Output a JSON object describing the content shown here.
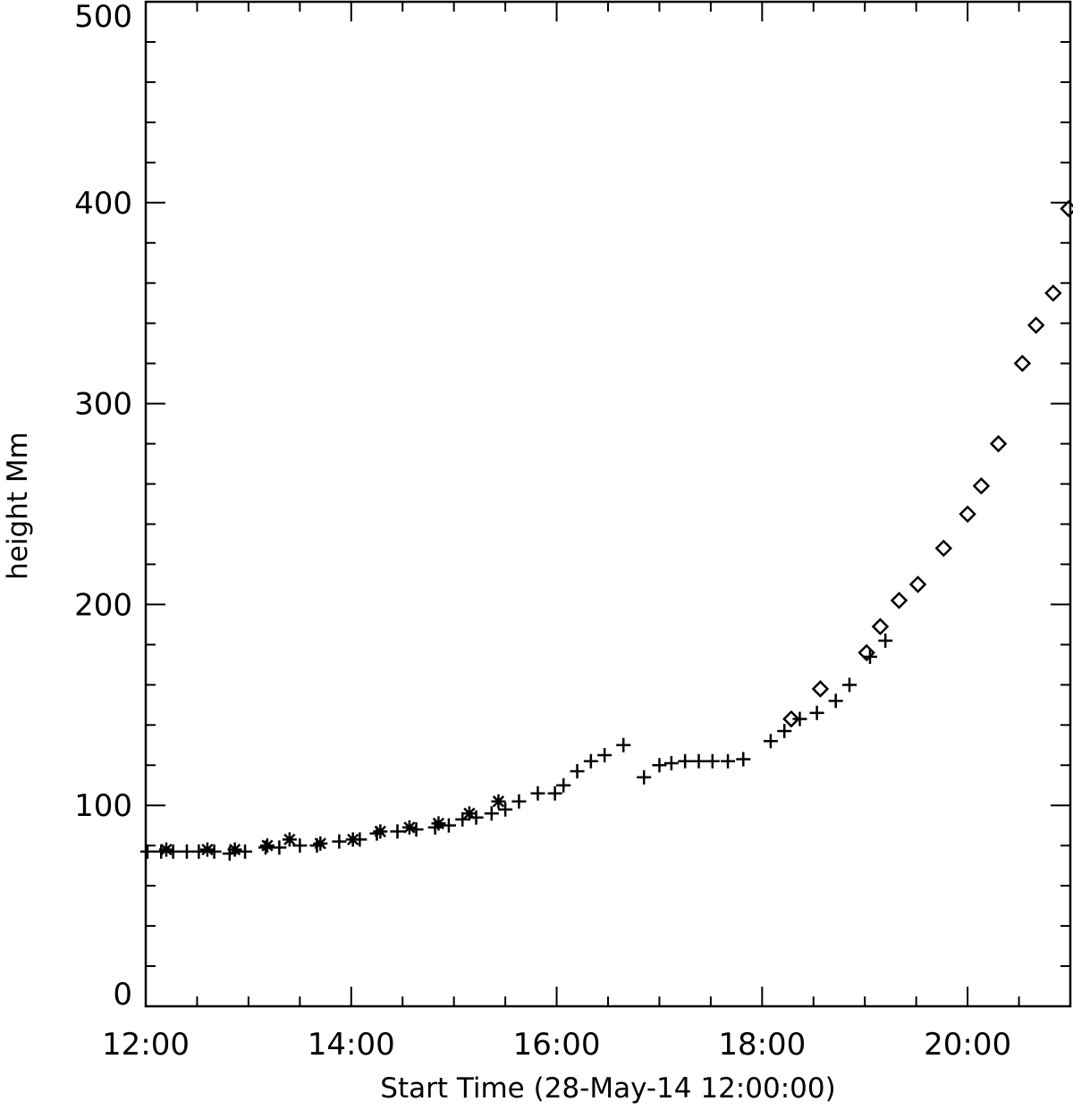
{
  "chart_data": {
    "type": "scatter",
    "title": "",
    "xlabel": "Start Time (28-May-14 12:00:00)",
    "ylabel": "height Mm",
    "xlim": [
      "12:00",
      "21:00"
    ],
    "ylim": [
      0,
      500
    ],
    "x_tick_labels": [
      "12:00",
      "14:00",
      "16:00",
      "18:00",
      "20:00"
    ],
    "y_tick_labels": [
      "0",
      "100",
      "200",
      "300",
      "400",
      "500"
    ],
    "grid": false,
    "legend": null,
    "series": [
      {
        "marker": "plus",
        "points": [
          [
            "12:01",
            77
          ],
          [
            "12:09",
            77
          ],
          [
            "12:16",
            77
          ],
          [
            "12:24",
            77
          ],
          [
            "12:31",
            77
          ],
          [
            "12:40",
            77
          ],
          [
            "12:49",
            76
          ],
          [
            "12:58",
            77
          ],
          [
            "13:10",
            79
          ],
          [
            "13:18",
            79
          ],
          [
            "13:30",
            80
          ],
          [
            "13:40",
            80
          ],
          [
            "13:53",
            82
          ],
          [
            "14:05",
            83
          ],
          [
            "14:15",
            86
          ],
          [
            "14:27",
            87
          ],
          [
            "14:38",
            88
          ],
          [
            "14:49",
            89
          ],
          [
            "14:57",
            90
          ],
          [
            "15:05",
            93
          ],
          [
            "15:13",
            94
          ],
          [
            "15:22",
            96
          ],
          [
            "15:30",
            98
          ],
          [
            "15:38",
            102
          ],
          [
            "15:49",
            106
          ],
          [
            "15:59",
            106
          ],
          [
            "16:04",
            110
          ],
          [
            "16:12",
            117
          ],
          [
            "16:20",
            122
          ],
          [
            "16:28",
            125
          ],
          [
            "16:39",
            130
          ],
          [
            "16:51",
            114
          ],
          [
            "17:00",
            120
          ],
          [
            "17:07",
            121
          ],
          [
            "17:15",
            122
          ],
          [
            "17:23",
            122
          ],
          [
            "17:31",
            122
          ],
          [
            "17:40",
            122
          ],
          [
            "17:49",
            123
          ],
          [
            "18:05",
            132
          ],
          [
            "18:13",
            137
          ],
          [
            "18:22",
            143
          ],
          [
            "18:32",
            146
          ],
          [
            "18:43",
            152
          ],
          [
            "18:51",
            160
          ],
          [
            "19:03",
            174
          ],
          [
            "19:12",
            182
          ]
        ]
      },
      {
        "marker": "asterisk",
        "points": [
          [
            "12:12",
            78
          ],
          [
            "12:36",
            78
          ],
          [
            "12:52",
            78
          ],
          [
            "13:11",
            80
          ],
          [
            "13:24",
            83
          ],
          [
            "13:42",
            81
          ],
          [
            "14:01",
            83
          ],
          [
            "14:17",
            87
          ],
          [
            "14:34",
            89
          ],
          [
            "14:51",
            91
          ],
          [
            "15:09",
            96
          ],
          [
            "15:26",
            102
          ]
        ]
      },
      {
        "marker": "diamond",
        "points": [
          [
            "18:17",
            143
          ],
          [
            "18:34",
            158
          ],
          [
            "19:01",
            176
          ],
          [
            "19:09",
            189
          ],
          [
            "19:20",
            202
          ],
          [
            "19:31",
            210
          ],
          [
            "19:46",
            228
          ],
          [
            "20:00",
            245
          ],
          [
            "20:08",
            259
          ],
          [
            "20:18",
            280
          ],
          [
            "20:32",
            320
          ],
          [
            "20:40",
            339
          ],
          [
            "20:50",
            355
          ],
          [
            "20:59",
            397
          ]
        ]
      }
    ]
  }
}
